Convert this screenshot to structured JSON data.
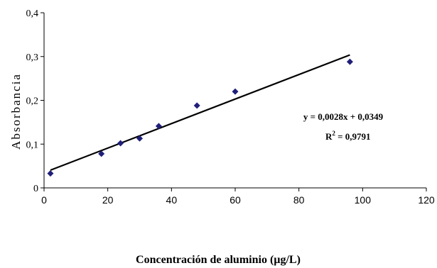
{
  "chart_data": {
    "type": "scatter",
    "xlabel": "Concentración de aluminio (µg/L)",
    "ylabel": "Absorbancia",
    "xlim": [
      0,
      120
    ],
    "ylim": [
      0,
      0.4
    ],
    "x_ticks": [
      "0",
      "20",
      "40",
      "60",
      "80",
      "100",
      "120"
    ],
    "y_ticks": [
      "0",
      "0,1",
      "0,2",
      "0,3",
      "0,4"
    ],
    "grid": false,
    "series": [
      {
        "points": [
          {
            "x": 2,
            "y": 0.033
          },
          {
            "x": 18,
            "y": 0.078
          },
          {
            "x": 24,
            "y": 0.102
          },
          {
            "x": 30,
            "y": 0.113
          },
          {
            "x": 36,
            "y": 0.141
          },
          {
            "x": 48,
            "y": 0.188
          },
          {
            "x": 60,
            "y": 0.22
          },
          {
            "x": 96,
            "y": 0.288
          }
        ],
        "color": "#1f1f7a",
        "marker": "diamond"
      }
    ],
    "trendline": {
      "slope": 0.0028,
      "intercept": 0.0349,
      "x_range": [
        2,
        96
      ],
      "color": "#000000"
    },
    "annotations": {
      "equation": "y = 0,0028x + 0,0349",
      "r2_label": "R",
      "r2_sup": "2",
      "r2_value": " = 0,9791"
    }
  }
}
